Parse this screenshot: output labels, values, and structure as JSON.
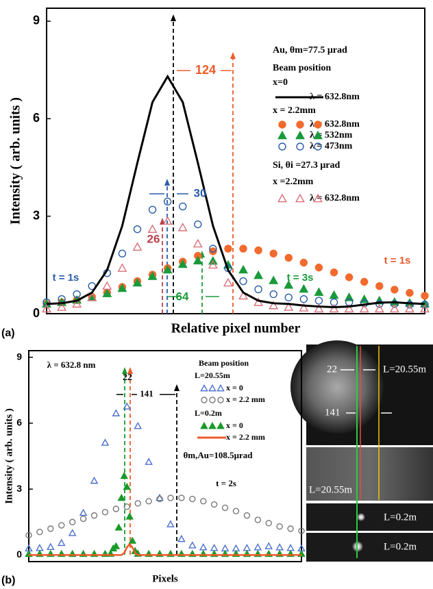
{
  "figure": {
    "panel_labels": [
      "(a)",
      "(b)"
    ]
  },
  "chart_data": [
    {
      "type": "scatter",
      "xlabel": "Relative pixel number",
      "ylabel": "Intensity ( arb. units )",
      "xlim": [
        0,
        100
      ],
      "ylim": [
        0,
        9.4
      ],
      "yticks": [
        0,
        3,
        6,
        9
      ],
      "x": [
        0,
        4,
        8,
        12,
        16,
        20,
        24,
        28,
        32,
        36,
        40,
        44,
        48,
        52,
        56,
        60,
        64,
        68,
        72,
        76,
        80,
        84,
        88,
        92,
        96,
        100
      ],
      "legend_texts": [
        "Au, θm=77.5 μrad",
        "Beam position",
        "x=0",
        "x = 2.2mm",
        "Si, θi =27.3 μrad",
        "x =2.2mm"
      ],
      "annotations": [
        {
          "text": "124",
          "color": "#ee5a2a"
        },
        {
          "text": "30",
          "color": "#2a5caa"
        },
        {
          "text": "26",
          "color": "#b8404a"
        },
        {
          "text": "64",
          "color": "#1a9a3a"
        },
        {
          "text": "t = 1s",
          "color": "#2a5caa"
        },
        {
          "text": "t = 1s",
          "color": "#ee5a2a"
        },
        {
          "text": "t = 3s",
          "color": "#1a9a3a"
        }
      ],
      "series": [
        {
          "name": "λ = 632.8nm",
          "color": "#f26a2e",
          "marker": "circle",
          "filled": true,
          "values": [
            0.3,
            0.35,
            0.42,
            0.52,
            0.65,
            0.82,
            1.0,
            1.2,
            1.4,
            1.6,
            1.78,
            1.92,
            2.0,
            2.0,
            1.95,
            1.85,
            1.72,
            1.57,
            1.42,
            1.27,
            1.12,
            0.98,
            0.85,
            0.74,
            0.64,
            0.55
          ]
        },
        {
          "name": "λ = 532nm",
          "color": "#1a9a3a",
          "marker": "triangle",
          "filled": true,
          "values": [
            0.3,
            0.35,
            0.42,
            0.5,
            0.62,
            0.78,
            0.95,
            1.15,
            1.35,
            1.52,
            1.63,
            1.62,
            1.5,
            1.35,
            1.18,
            1.02,
            0.88,
            0.76,
            0.66,
            0.57,
            0.5,
            0.44,
            0.4,
            0.36,
            0.33,
            0.3
          ]
        },
        {
          "name": "λ = 473nm",
          "color": "#2a5caa",
          "marker": "circle",
          "filled": false,
          "values": [
            0.35,
            0.45,
            0.6,
            0.85,
            1.25,
            1.85,
            2.6,
            3.2,
            3.45,
            3.3,
            2.75,
            2.0,
            1.4,
            1.0,
            0.75,
            0.6,
            0.5,
            0.45,
            0.4,
            0.35,
            0.35,
            0.32,
            0.3,
            0.3,
            0.28,
            0.28
          ]
        },
        {
          "name": "λ = 632.8nm",
          "color": "#d9707a",
          "marker": "triangle",
          "filled": false,
          "values": [
            0.15,
            0.2,
            0.3,
            0.5,
            0.85,
            1.4,
            2.05,
            2.6,
            2.85,
            2.65,
            2.15,
            1.5,
            0.95,
            0.55,
            0.35,
            0.25,
            0.2,
            0.18,
            0.15,
            0.15,
            0.15,
            0.15,
            0.15,
            0.15,
            0.15,
            0.15
          ]
        },
        {
          "name": "λ = 632.8nm",
          "color": "#000000",
          "marker": "line",
          "values": [
            0.3,
            0.32,
            0.4,
            0.65,
            1.34,
            2.7,
            4.64,
            6.51,
            7.3,
            6.51,
            4.64,
            2.7,
            1.34,
            0.65,
            0.4,
            0.32,
            0.3,
            0.25,
            0.22,
            0.2,
            0.22,
            0.28,
            0.34,
            0.35,
            0.32,
            0.3
          ]
        }
      ]
    },
    {
      "type": "scatter",
      "xlabel": "Pixels",
      "ylabel": "Intensity ( arb. units )",
      "xlim": [
        0,
        100
      ],
      "ylim": [
        -0.3,
        9.3
      ],
      "yticks": [
        0,
        3,
        6,
        9
      ],
      "x": [
        0,
        4,
        8,
        12,
        16,
        20,
        24,
        28,
        32,
        36,
        40,
        44,
        48,
        52,
        56,
        60,
        64,
        68,
        72,
        76,
        80,
        84,
        88,
        92,
        96,
        100
      ],
      "legend_texts": [
        "Beam position",
        "L=20.55m",
        "L=0.2m"
      ],
      "annotations": [
        {
          "text": "λ = 632.8 nm",
          "color": "#000000"
        },
        {
          "text": "22",
          "color": "#000000"
        },
        {
          "text": "141",
          "color": "#000000"
        },
        {
          "text": "t = 2s",
          "color": "#000000"
        },
        {
          "text": "θm,Au=108.5μrad",
          "color": "#000000"
        }
      ],
      "series": [
        {
          "name": "x = 0",
          "color": "#4a6ed0",
          "marker": "triangle",
          "filled": false,
          "values": [
            0.3,
            0.32,
            0.37,
            0.55,
            1.0,
            1.92,
            3.38,
            5.11,
            6.45,
            6.76,
            5.87,
            4.24,
            2.6,
            1.4,
            0.73,
            0.44,
            0.35,
            0.32,
            0.3,
            0.3,
            0.32,
            0.35,
            0.4,
            0.35,
            0.32,
            0.3
          ]
        },
        {
          "name": "x = 2.2 mm",
          "color": "#777777",
          "marker": "circle",
          "filled": false,
          "values": [
            0.9,
            1.05,
            1.2,
            1.35,
            1.5,
            1.65,
            1.8,
            1.95,
            2.1,
            2.2,
            2.35,
            2.45,
            2.55,
            2.6,
            2.6,
            2.55,
            2.45,
            2.3,
            2.15,
            2.0,
            1.8,
            1.6,
            1.45,
            1.3,
            1.2,
            1.1
          ]
        },
        {
          "name": "x = 0",
          "color": "#1a9a2a",
          "marker": "triangle",
          "filled": true,
          "x": [
            0,
            4,
            8,
            12,
            16,
            20,
            24,
            28,
            30,
            31,
            32,
            33,
            34,
            35,
            36,
            37,
            38,
            39,
            40,
            44,
            48,
            52,
            56,
            60,
            64,
            68,
            72,
            76,
            80,
            84,
            88,
            92,
            96,
            100
          ],
          "values": [
            0.05,
            0.05,
            0.05,
            0.05,
            0.05,
            0.05,
            0.05,
            0.05,
            0.06,
            0.3,
            0.4,
            1.25,
            2.6,
            3.6,
            3.1,
            1.75,
            0.65,
            0.18,
            0.06,
            0.05,
            0.05,
            0.05,
            0.05,
            0.05,
            0.05,
            0.05,
            0.05,
            0.05,
            0.05,
            0.05,
            0.05,
            0.05,
            0.05,
            0.05
          ]
        },
        {
          "name": "x = 2.2 mm",
          "color": "#f05a28",
          "marker": "line",
          "x": [
            0,
            34,
            35,
            36,
            37,
            38,
            39,
            40,
            100
          ],
          "values": [
            0,
            0,
            0.1,
            0.35,
            0.5,
            0.35,
            0.1,
            0,
            0
          ]
        }
      ]
    }
  ],
  "images": {
    "labels": [
      "22",
      "141",
      "L=20.55m",
      "L=20.55m",
      "L=0.2m",
      "L=0.2m"
    ]
  }
}
